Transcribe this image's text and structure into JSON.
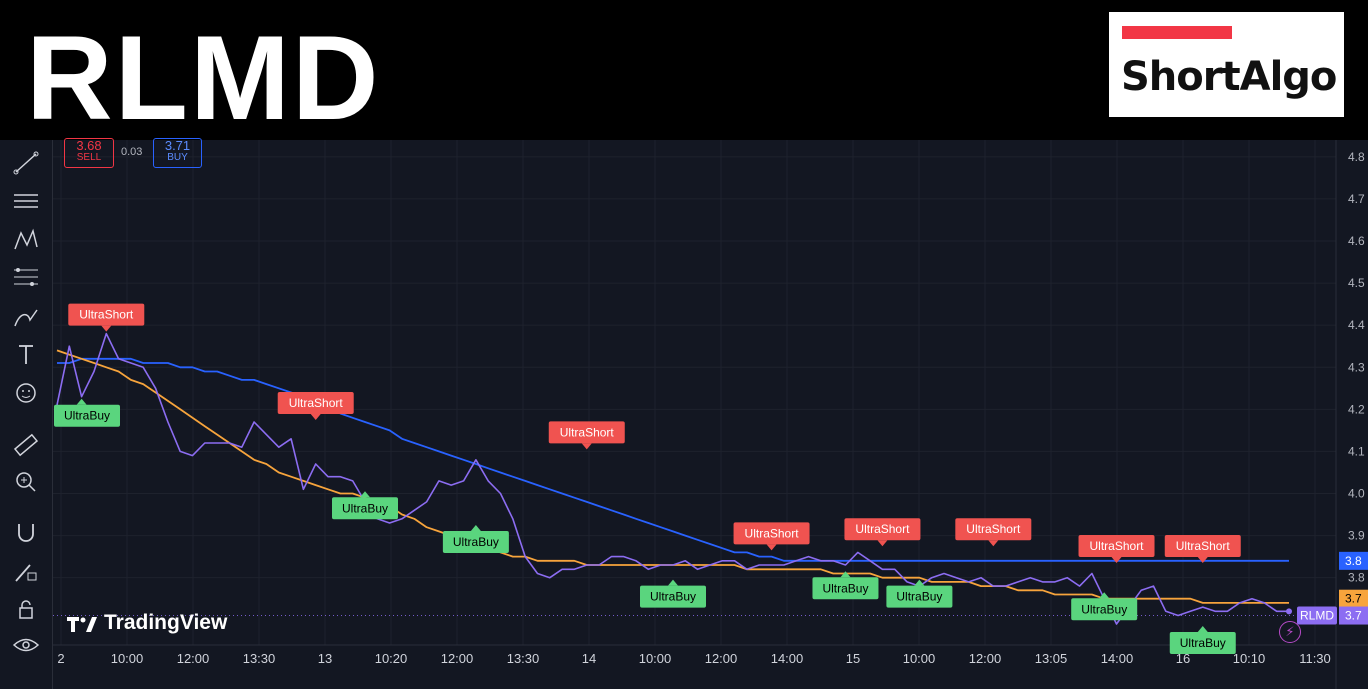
{
  "header": {
    "ticker": "RLMD",
    "logo_text": "ShortAlgo",
    "logo_bar_color": "#f23645"
  },
  "trade_panel": {
    "sell_price": "3.68",
    "sell_label": "SELL",
    "spread": "0.03",
    "buy_price": "3.71",
    "buy_label": "BUY"
  },
  "watermark": "TradingView",
  "toolbar": {
    "icons": [
      "trendline-icon",
      "horizontal-lines-icon",
      "pattern-icon",
      "fib-icon",
      "brush-icon",
      "text-icon",
      "emoji-icon",
      "ruler-icon",
      "zoom-icon",
      "magnet-icon",
      "lock-drawing-icon",
      "lock-icon",
      "eye-icon"
    ]
  },
  "chart_data": {
    "type": "line",
    "symbol": "RLMD",
    "x_ticks": [
      "2",
      "10:00",
      "12:00",
      "13:30",
      "13",
      "10:20",
      "12:00",
      "13:30",
      "14",
      "10:00",
      "12:00",
      "14:00",
      "15",
      "10:00",
      "12:00",
      "13:05",
      "14:00",
      "16",
      "10:10",
      "11:30"
    ],
    "y_ticks": [
      "4.8",
      "4.7",
      "4.6",
      "4.5",
      "4.4",
      "4.3",
      "4.2",
      "4.1",
      "4.0",
      "3.9",
      "3.8"
    ],
    "ylim": [
      3.64,
      4.84
    ],
    "x": [
      0,
      1,
      2,
      3,
      4,
      5,
      6,
      7,
      8,
      9,
      10,
      11,
      12,
      13,
      14,
      15,
      16,
      17,
      18,
      19,
      20,
      21,
      22,
      23,
      24,
      25,
      26,
      27,
      28,
      29,
      30,
      31,
      32,
      33,
      34,
      35,
      36,
      37,
      38,
      39,
      40,
      41,
      42,
      43,
      44,
      45,
      46,
      47,
      48,
      49,
      50,
      51,
      52,
      53,
      54,
      55,
      56,
      57,
      58,
      59,
      60,
      61,
      62,
      63,
      64,
      65,
      66,
      67,
      68,
      69,
      70,
      71,
      72,
      73,
      74,
      75,
      76,
      77,
      78,
      79,
      80,
      81,
      82,
      83,
      84,
      85,
      86,
      87,
      88,
      89,
      90,
      91,
      92,
      93,
      94,
      95,
      96,
      97,
      98,
      99,
      100
    ],
    "series": [
      {
        "name": "RLMD",
        "color": "#8c6df2",
        "values": [
          4.21,
          4.35,
          4.23,
          4.29,
          4.38,
          4.32,
          4.31,
          4.3,
          4.25,
          4.17,
          4.1,
          4.09,
          4.12,
          4.12,
          4.12,
          4.11,
          4.17,
          4.14,
          4.11,
          4.13,
          4.01,
          4.07,
          4.04,
          4.04,
          4.03,
          3.98,
          3.94,
          3.93,
          3.94,
          3.96,
          3.98,
          4.03,
          4.02,
          4.03,
          4.08,
          4.03,
          4.0,
          3.94,
          3.85,
          3.81,
          3.8,
          3.82,
          3.82,
          3.83,
          3.83,
          3.85,
          3.85,
          3.84,
          3.82,
          3.83,
          3.83,
          3.84,
          3.82,
          3.83,
          3.84,
          3.84,
          3.82,
          3.83,
          3.83,
          3.83,
          3.84,
          3.85,
          3.84,
          3.84,
          3.83,
          3.86,
          3.84,
          3.82,
          3.82,
          3.79,
          3.78,
          3.8,
          3.81,
          3.8,
          3.79,
          3.8,
          3.78,
          3.78,
          3.79,
          3.8,
          3.79,
          3.79,
          3.8,
          3.78,
          3.81,
          3.75,
          3.69,
          3.73,
          3.77,
          3.78,
          3.72,
          3.71,
          3.72,
          3.73,
          3.72,
          3.72,
          3.74,
          3.75,
          3.74,
          3.72,
          3.72
        ]
      },
      {
        "name": "",
        "color": "#f7a43c",
        "values": [
          4.34,
          4.33,
          4.32,
          4.31,
          4.3,
          4.29,
          4.27,
          4.26,
          4.24,
          4.22,
          4.2,
          4.18,
          4.16,
          4.14,
          4.12,
          4.1,
          4.08,
          4.07,
          4.05,
          4.04,
          4.03,
          4.02,
          4.01,
          4.0,
          4.0,
          3.99,
          3.98,
          3.97,
          3.95,
          3.94,
          3.92,
          3.91,
          3.9,
          3.89,
          3.88,
          3.87,
          3.86,
          3.85,
          3.85,
          3.84,
          3.84,
          3.84,
          3.84,
          3.83,
          3.83,
          3.83,
          3.83,
          3.83,
          3.83,
          3.83,
          3.83,
          3.83,
          3.83,
          3.83,
          3.83,
          3.83,
          3.82,
          3.82,
          3.82,
          3.82,
          3.82,
          3.82,
          3.82,
          3.81,
          3.81,
          3.81,
          3.81,
          3.8,
          3.8,
          3.8,
          3.8,
          3.79,
          3.79,
          3.79,
          3.79,
          3.78,
          3.78,
          3.78,
          3.77,
          3.77,
          3.77,
          3.76,
          3.76,
          3.76,
          3.76,
          3.75,
          3.75,
          3.75,
          3.75,
          3.75,
          3.75,
          3.75,
          3.75,
          3.74,
          3.74,
          3.74,
          3.74,
          3.74,
          3.74,
          3.74,
          3.74
        ]
      },
      {
        "name": "",
        "color": "#2962ff",
        "values": [
          4.31,
          4.31,
          4.32,
          4.32,
          4.32,
          4.32,
          4.32,
          4.31,
          4.31,
          4.31,
          4.3,
          4.3,
          4.29,
          4.29,
          4.28,
          4.27,
          4.27,
          4.26,
          4.25,
          4.24,
          4.23,
          4.22,
          4.21,
          4.19,
          4.18,
          4.17,
          4.16,
          4.15,
          4.13,
          4.12,
          4.11,
          4.1,
          4.09,
          4.08,
          4.07,
          4.06,
          4.05,
          4.04,
          4.03,
          4.02,
          4.01,
          4.0,
          3.99,
          3.98,
          3.97,
          3.96,
          3.95,
          3.94,
          3.93,
          3.92,
          3.91,
          3.9,
          3.89,
          3.88,
          3.87,
          3.86,
          3.86,
          3.85,
          3.85,
          3.84,
          3.84,
          3.84,
          3.84,
          3.84,
          3.84,
          3.84,
          3.84,
          3.84,
          3.84,
          3.84,
          3.84,
          3.84,
          3.84,
          3.84,
          3.84,
          3.84,
          3.84,
          3.84,
          3.84,
          3.84,
          3.84,
          3.84,
          3.84,
          3.84,
          3.84,
          3.84,
          3.84,
          3.84,
          3.84,
          3.84,
          3.84,
          3.84,
          3.84,
          3.84,
          3.84,
          3.84,
          3.84,
          3.84,
          3.84,
          3.84,
          3.84
        ]
      }
    ],
    "price_labels": [
      {
        "text": "3.8",
        "value": 3.84,
        "color": "#2962ff"
      },
      {
        "text": "3.7",
        "value": 3.75,
        "color": "#f7a43c"
      },
      {
        "text": "3.7",
        "value": 3.71,
        "color": "#8c6df2",
        "prefix": "RLMD"
      }
    ],
    "current_price": 3.71,
    "annotations": [
      {
        "text": "UltraShort",
        "x": 4,
        "y": 4.38,
        "kind": "short"
      },
      {
        "text": "UltraBuy",
        "x": 2,
        "y": 4.23,
        "kind": "buy"
      },
      {
        "text": "UltraShort",
        "x": 21,
        "y": 4.17,
        "kind": "short"
      },
      {
        "text": "UltraBuy",
        "x": 25,
        "y": 4.01,
        "kind": "buy"
      },
      {
        "text": "UltraBuy",
        "x": 34,
        "y": 3.93,
        "kind": "buy"
      },
      {
        "text": "UltraShort",
        "x": 43,
        "y": 4.1,
        "kind": "short"
      },
      {
        "text": "UltraBuy",
        "x": 50,
        "y": 3.8,
        "kind": "buy"
      },
      {
        "text": "UltraShort",
        "x": 58,
        "y": 3.86,
        "kind": "short"
      },
      {
        "text": "UltraBuy",
        "x": 64,
        "y": 3.82,
        "kind": "buy"
      },
      {
        "text": "UltraShort",
        "x": 67,
        "y": 3.87,
        "kind": "short"
      },
      {
        "text": "UltraBuy",
        "x": 70,
        "y": 3.8,
        "kind": "buy"
      },
      {
        "text": "UltraShort",
        "x": 76,
        "y": 3.87,
        "kind": "short"
      },
      {
        "text": "UltraShort",
        "x": 86,
        "y": 3.83,
        "kind": "short"
      },
      {
        "text": "UltraBuy",
        "x": 85,
        "y": 3.77,
        "kind": "buy"
      },
      {
        "text": "UltraShort",
        "x": 93,
        "y": 3.83,
        "kind": "short"
      },
      {
        "text": "UltraBuy",
        "x": 93,
        "y": 3.69,
        "kind": "buy"
      }
    ],
    "grid": true,
    "legend": "none"
  }
}
